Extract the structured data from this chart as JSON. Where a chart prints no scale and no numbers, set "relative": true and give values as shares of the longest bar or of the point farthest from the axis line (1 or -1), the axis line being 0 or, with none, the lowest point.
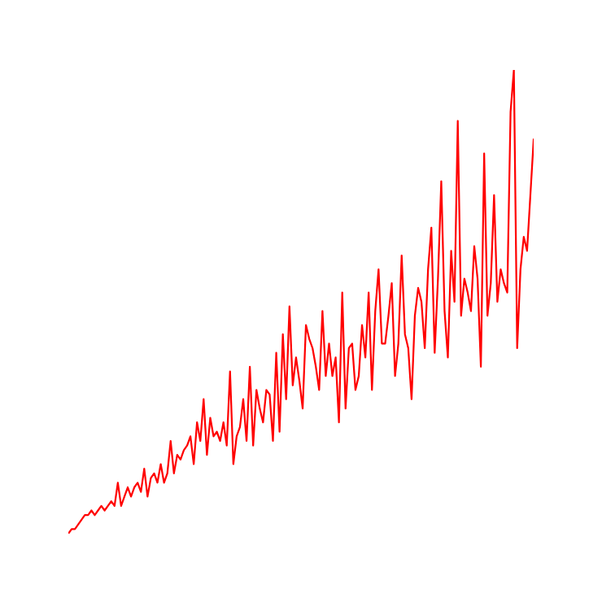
{
  "chart_data": {
    "type": "line",
    "relative": true,
    "categories": [
      null,
      null,
      null,
      null,
      null,
      null,
      null,
      null,
      null,
      null,
      null,
      null,
      null,
      null,
      null,
      null,
      null,
      null,
      null,
      null,
      null,
      null,
      null,
      null,
      null,
      null,
      null,
      null,
      null,
      null,
      null,
      null,
      null,
      null,
      null,
      null,
      null,
      null,
      null,
      null,
      null,
      null,
      null,
      null,
      null,
      null,
      null,
      null,
      null,
      null,
      null,
      null,
      null,
      null,
      null,
      null,
      null,
      null,
      null,
      null,
      null,
      null,
      null,
      null,
      null,
      null,
      null,
      null,
      null,
      null,
      null,
      null,
      null,
      null,
      null,
      null,
      null,
      null,
      null,
      null,
      null,
      null,
      null,
      null,
      null,
      null,
      null,
      null,
      null,
      null,
      null,
      null,
      null,
      null,
      null,
      null,
      null,
      null,
      null,
      null,
      null,
      null,
      null,
      null,
      null,
      null,
      null,
      null,
      null,
      null,
      null,
      null,
      null,
      null,
      null,
      null,
      null,
      null,
      null,
      null,
      null,
      null,
      null,
      null,
      null,
      null,
      null,
      null,
      null,
      null,
      null,
      null,
      null,
      null,
      null,
      null,
      null,
      null,
      null,
      null,
      null,
      null
    ],
    "series": [
      {
        "color": "#ff0000",
        "values": [
          0,
          0.01,
          0.01,
          0.02,
          0.03,
          0.04,
          0.04,
          0.05,
          0.04,
          0.05,
          0.06,
          0.05,
          0.06,
          0.07,
          0.06,
          0.11,
          0.06,
          0.08,
          0.1,
          0.08,
          0.1,
          0.11,
          0.09,
          0.14,
          0.08,
          0.12,
          0.13,
          0.11,
          0.15,
          0.11,
          0.13,
          0.2,
          0.13,
          0.17,
          0.16,
          0.18,
          0.19,
          0.21,
          0.15,
          0.24,
          0.2,
          0.29,
          0.17,
          0.25,
          0.21,
          0.22,
          0.2,
          0.24,
          0.19,
          0.35,
          0.15,
          0.21,
          0.23,
          0.29,
          0.2,
          0.36,
          0.19,
          0.31,
          0.27,
          0.24,
          0.31,
          0.3,
          0.2,
          0.39,
          0.22,
          0.43,
          0.29,
          0.49,
          0.32,
          0.38,
          0.33,
          0.27,
          0.45,
          0.42,
          0.4,
          0.36,
          0.31,
          0.48,
          0.34,
          0.41,
          0.34,
          0.38,
          0.24,
          0.52,
          0.27,
          0.4,
          0.41,
          0.31,
          0.34,
          0.45,
          0.38,
          0.52,
          0.31,
          0.48,
          0.57,
          0.41,
          0.41,
          0.47,
          0.54,
          0.34,
          0.41,
          0.6,
          0.43,
          0.4,
          0.29,
          0.47,
          0.53,
          0.5,
          0.4,
          0.57,
          0.66,
          0.39,
          0.55,
          0.76,
          0.48,
          0.38,
          0.61,
          0.5,
          0.89,
          0.47,
          0.55,
          0.52,
          0.48,
          0.62,
          0.55,
          0.36,
          0.82,
          0.47,
          0.54,
          0.73,
          0.5,
          0.57,
          0.54,
          0.52,
          0.91,
          1,
          0.4,
          0.57,
          0.64,
          0.61,
          0.73,
          0.85
        ]
      }
    ]
  }
}
